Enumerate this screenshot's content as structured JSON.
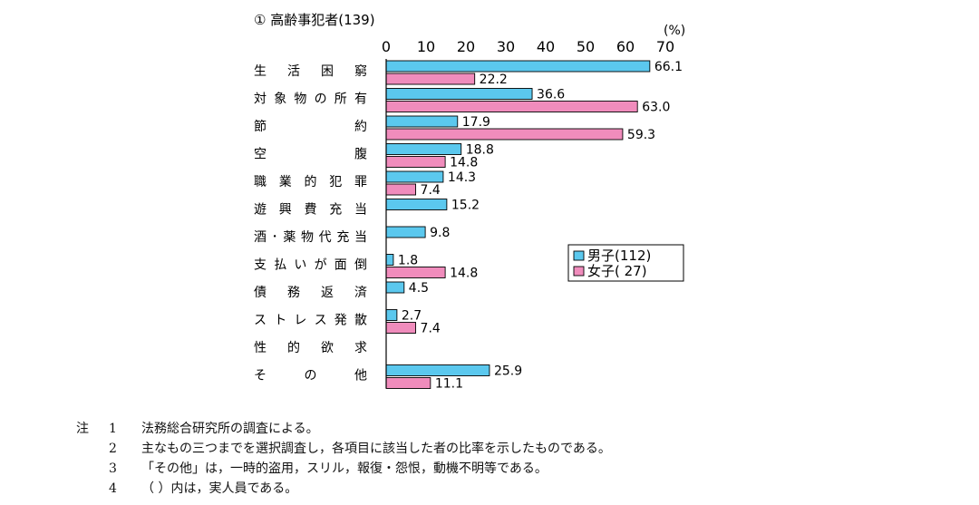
{
  "chart_data": {
    "type": "bar",
    "orientation": "horizontal",
    "title": "① 高齢事犯者(139)",
    "unit_label": "(%)",
    "xlim": [
      0,
      70
    ],
    "ticks": [
      0,
      10,
      20,
      30,
      40,
      50,
      60,
      70
    ],
    "grid": false,
    "legend_position": "right",
    "categories": [
      "生 活 困 窮",
      "対象物の所有",
      "節　　　約",
      "空　　　腹",
      "職 業 的 犯 罪",
      "遊 興 費 充 当",
      "酒･薬物代充当",
      "支払いが面倒",
      "債 務 返 済",
      "ストレス発散",
      "性 的 欲 求",
      "そ　の　他"
    ],
    "series": [
      {
        "name": "男子(112)",
        "color": "#5bc8ee",
        "values": [
          66.1,
          36.6,
          17.9,
          18.8,
          14.3,
          15.2,
          9.8,
          1.8,
          4.5,
          2.7,
          null,
          25.9
        ]
      },
      {
        "name": "女子( 27)",
        "color": "#f08cbc",
        "values": [
          22.2,
          63.0,
          59.3,
          14.8,
          7.4,
          null,
          null,
          14.8,
          null,
          7.4,
          null,
          11.1
        ]
      }
    ]
  },
  "notes": {
    "head": "注",
    "items": [
      {
        "num": "1",
        "text": "法務総合研究所の調査による。"
      },
      {
        "num": "2",
        "text": "主なもの三つまでを選択調査し，各項目に該当した者の比率を示したものである。"
      },
      {
        "num": "3",
        "text": "「その他」は，一時的盗用，スリル，報復・怨恨，動機不明等である。"
      },
      {
        "num": "4",
        "text": "（ ）内は，実人員である。"
      }
    ]
  }
}
